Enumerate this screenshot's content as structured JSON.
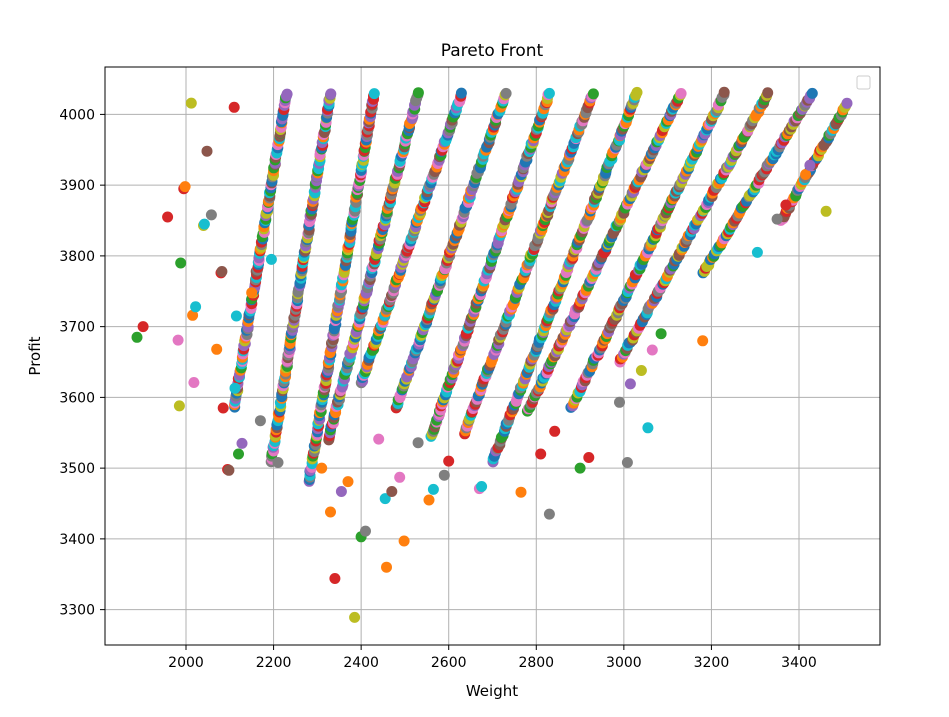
{
  "chart_data": {
    "type": "scatter",
    "title": "Pareto Front",
    "xlabel": "Weight",
    "ylabel": "Profit",
    "xlim": [
      1815,
      3585
    ],
    "ylim": [
      3250,
      4067
    ],
    "xticks": [
      2000,
      2200,
      2400,
      2600,
      2800,
      3000,
      3200,
      3400
    ],
    "yticks": [
      3300,
      3400,
      3500,
      3600,
      3700,
      3800,
      3900,
      4000
    ],
    "grid": true,
    "legend": "top-right (empty)",
    "palette": [
      "#1f77b4",
      "#ff7f0e",
      "#2ca02c",
      "#d62728",
      "#9467bd",
      "#8c564b",
      "#e377c2",
      "#7f7f7f",
      "#bcbd22",
      "#17becf"
    ],
    "bands": [
      {
        "x_start": 2110,
        "y_start": 3585,
        "x_end": 2230,
        "y_end": 4030
      },
      {
        "x_start": 2195,
        "y_start": 3510,
        "x_end": 2330,
        "y_end": 4030
      },
      {
        "x_start": 2280,
        "y_start": 3480,
        "x_end": 2430,
        "y_end": 4030
      },
      {
        "x_start": 2325,
        "y_start": 3540,
        "x_end": 2530,
        "y_end": 4030
      },
      {
        "x_start": 2400,
        "y_start": 3620,
        "x_end": 2630,
        "y_end": 4030
      },
      {
        "x_start": 2480,
        "y_start": 3585,
        "x_end": 2730,
        "y_end": 4030
      },
      {
        "x_start": 2560,
        "y_start": 3545,
        "x_end": 2830,
        "y_end": 4030
      },
      {
        "x_start": 2635,
        "y_start": 3550,
        "x_end": 2930,
        "y_end": 4030
      },
      {
        "x_start": 2700,
        "y_start": 3510,
        "x_end": 3030,
        "y_end": 4030
      },
      {
        "x_start": 2780,
        "y_start": 3580,
        "x_end": 3130,
        "y_end": 4030
      },
      {
        "x_start": 2880,
        "y_start": 3585,
        "x_end": 3230,
        "y_end": 4030
      },
      {
        "x_start": 2990,
        "y_start": 3650,
        "x_end": 3330,
        "y_end": 4030
      },
      {
        "x_start": 3180,
        "y_start": 3775,
        "x_end": 3430,
        "y_end": 4030
      },
      {
        "x_start": 3360,
        "y_start": 3850,
        "x_end": 3510,
        "y_end": 4015
      }
    ],
    "scatter_points": [
      {
        "x": 1888,
        "y": 3685,
        "color": "#2ca02c"
      },
      {
        "x": 1902,
        "y": 3700,
        "color": "#d62728"
      },
      {
        "x": 1958,
        "y": 3855,
        "color": "#d62728"
      },
      {
        "x": 1985,
        "y": 3588,
        "color": "#bcbd22"
      },
      {
        "x": 1982,
        "y": 3681,
        "color": "#e377c2"
      },
      {
        "x": 1988,
        "y": 3790,
        "color": "#2ca02c"
      },
      {
        "x": 1995,
        "y": 3895,
        "color": "#d62728"
      },
      {
        "x": 1998,
        "y": 3898,
        "color": "#ff7f0e"
      },
      {
        "x": 2012,
        "y": 4016,
        "color": "#bcbd22"
      },
      {
        "x": 2018,
        "y": 3621,
        "color": "#e377c2"
      },
      {
        "x": 2015,
        "y": 3716,
        "color": "#ff7f0e"
      },
      {
        "x": 2022,
        "y": 3728,
        "color": "#17becf"
      },
      {
        "x": 2040,
        "y": 3843,
        "color": "#bcbd22"
      },
      {
        "x": 2042,
        "y": 3845,
        "color": "#17becf"
      },
      {
        "x": 2048,
        "y": 3948,
        "color": "#8c564b"
      },
      {
        "x": 2058,
        "y": 3858,
        "color": "#7f7f7f"
      },
      {
        "x": 2070,
        "y": 3668,
        "color": "#ff7f0e"
      },
      {
        "x": 2080,
        "y": 3776,
        "color": "#d62728"
      },
      {
        "x": 2082,
        "y": 3778,
        "color": "#8c564b"
      },
      {
        "x": 2085,
        "y": 3585,
        "color": "#d62728"
      },
      {
        "x": 2095,
        "y": 3498,
        "color": "#d62728"
      },
      {
        "x": 2098,
        "y": 3497,
        "color": "#8c564b"
      },
      {
        "x": 2110,
        "y": 4010,
        "color": "#d62728"
      },
      {
        "x": 2112,
        "y": 3613,
        "color": "#17becf"
      },
      {
        "x": 2115,
        "y": 3715,
        "color": "#17becf"
      },
      {
        "x": 2120,
        "y": 3520,
        "color": "#2ca02c"
      },
      {
        "x": 2128,
        "y": 3535,
        "color": "#9467bd"
      },
      {
        "x": 2150,
        "y": 3748,
        "color": "#ff7f0e"
      },
      {
        "x": 2170,
        "y": 3567,
        "color": "#7f7f7f"
      },
      {
        "x": 2210,
        "y": 3508,
        "color": "#7f7f7f"
      },
      {
        "x": 2195,
        "y": 3795,
        "color": "#17becf"
      },
      {
        "x": 2310,
        "y": 3500,
        "color": "#ff7f0e"
      },
      {
        "x": 2330,
        "y": 3438,
        "color": "#ff7f0e"
      },
      {
        "x": 2340,
        "y": 3344,
        "color": "#d62728"
      },
      {
        "x": 2355,
        "y": 3467,
        "color": "#9467bd"
      },
      {
        "x": 2370,
        "y": 3481,
        "color": "#ff7f0e"
      },
      {
        "x": 2385,
        "y": 3289,
        "color": "#bcbd22"
      },
      {
        "x": 2400,
        "y": 3403,
        "color": "#2ca02c"
      },
      {
        "x": 2410,
        "y": 3411,
        "color": "#7f7f7f"
      },
      {
        "x": 2440,
        "y": 3541,
        "color": "#e377c2"
      },
      {
        "x": 2455,
        "y": 3457,
        "color": "#17becf"
      },
      {
        "x": 2458,
        "y": 3360,
        "color": "#ff7f0e"
      },
      {
        "x": 2470,
        "y": 3467,
        "color": "#8c564b"
      },
      {
        "x": 2488,
        "y": 3487,
        "color": "#e377c2"
      },
      {
        "x": 2498,
        "y": 3397,
        "color": "#ff7f0e"
      },
      {
        "x": 2530,
        "y": 3536,
        "color": "#7f7f7f"
      },
      {
        "x": 2555,
        "y": 3455,
        "color": "#ff7f0e"
      },
      {
        "x": 2565,
        "y": 3470,
        "color": "#17becf"
      },
      {
        "x": 2590,
        "y": 3490,
        "color": "#7f7f7f"
      },
      {
        "x": 2600,
        "y": 3510,
        "color": "#d62728"
      },
      {
        "x": 2670,
        "y": 3471,
        "color": "#e377c2"
      },
      {
        "x": 2675,
        "y": 3474,
        "color": "#17becf"
      },
      {
        "x": 2765,
        "y": 3466,
        "color": "#ff7f0e"
      },
      {
        "x": 2830,
        "y": 3435,
        "color": "#7f7f7f"
      },
      {
        "x": 2810,
        "y": 3520,
        "color": "#d62728"
      },
      {
        "x": 2842,
        "y": 3552,
        "color": "#d62728"
      },
      {
        "x": 2900,
        "y": 3500,
        "color": "#2ca02c"
      },
      {
        "x": 2920,
        "y": 3515,
        "color": "#d62728"
      },
      {
        "x": 2990,
        "y": 3593,
        "color": "#7f7f7f"
      },
      {
        "x": 3008,
        "y": 3508,
        "color": "#7f7f7f"
      },
      {
        "x": 3015,
        "y": 3619,
        "color": "#9467bd"
      },
      {
        "x": 3040,
        "y": 3638,
        "color": "#bcbd22"
      },
      {
        "x": 3055,
        "y": 3557,
        "color": "#17becf"
      },
      {
        "x": 3065,
        "y": 3667,
        "color": "#e377c2"
      },
      {
        "x": 3085,
        "y": 3690,
        "color": "#2ca02c"
      },
      {
        "x": 3180,
        "y": 3680,
        "color": "#ff7f0e"
      },
      {
        "x": 3305,
        "y": 3805,
        "color": "#17becf"
      },
      {
        "x": 3350,
        "y": 3852,
        "color": "#7f7f7f"
      },
      {
        "x": 3370,
        "y": 3872,
        "color": "#d62728"
      },
      {
        "x": 3415,
        "y": 3915,
        "color": "#ff7f0e"
      },
      {
        "x": 3425,
        "y": 3928,
        "color": "#9467bd"
      },
      {
        "x": 3462,
        "y": 3863,
        "color": "#bcbd22"
      }
    ]
  }
}
